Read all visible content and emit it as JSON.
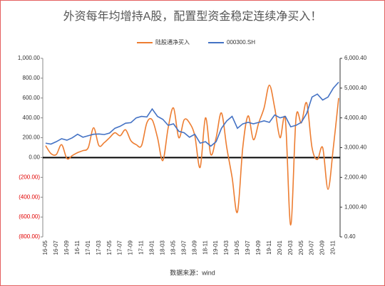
{
  "chart_data": {
    "type": "line",
    "title": "外资每年均增持A股，配置型资金稳定连续净买入！",
    "source": "数据来源：wind",
    "categories": [
      "16-05",
      null,
      "16-07",
      null,
      "16-09",
      null,
      "16-11",
      null,
      "17-01",
      null,
      "17-03",
      null,
      "17-05",
      null,
      "17-07",
      null,
      "17-09",
      null,
      "17-11",
      null,
      "18-01",
      null,
      "18-03",
      null,
      "18-05",
      null,
      "18-07",
      null,
      "18-09",
      null,
      "18-11",
      null,
      "19-01",
      null,
      "19-03",
      null,
      "19-05",
      null,
      "19-07",
      null,
      "19-09",
      null,
      "19-11",
      null,
      "20-01",
      null,
      "20-03",
      null,
      "20-05",
      null,
      "20-07",
      null,
      "20-09",
      null,
      "20-11",
      null
    ],
    "series": [
      {
        "name": "陆股通净买入",
        "color": "#ed7d31",
        "values": [
          120,
          40,
          30,
          130,
          -10,
          20,
          50,
          70,
          100,
          300,
          120,
          150,
          200,
          250,
          220,
          280,
          170,
          130,
          120,
          350,
          380,
          200,
          -30,
          300,
          500,
          200,
          380,
          350,
          220,
          -100,
          400,
          30,
          200,
          450,
          100,
          -200,
          -550,
          100,
          420,
          180,
          350,
          500,
          730,
          500,
          200,
          380,
          -680,
          400,
          350,
          550,
          100,
          -20,
          100,
          -320,
          100,
          600
        ]
      },
      {
        "name": "000300.SH",
        "color": "#4472c4",
        "axis": "y2",
        "values": [
          3150,
          3120,
          3200,
          3300,
          3250,
          3330,
          3450,
          3350,
          3400,
          3450,
          3460,
          3440,
          3490,
          3650,
          3720,
          3820,
          3840,
          4000,
          4050,
          4030,
          4300,
          4050,
          3950,
          3750,
          3800,
          3550,
          3500,
          3350,
          3450,
          3150,
          3200,
          3050,
          3200,
          3650,
          3900,
          4050,
          3650,
          3800,
          3850,
          3800,
          3850,
          3900,
          3850,
          4100,
          4000,
          4050,
          3700,
          3750,
          3850,
          4150,
          4700,
          4800,
          4600,
          4700,
          5000,
          5200
        ]
      }
    ],
    "ylim": [
      -800,
      1000
    ],
    "yticks": [
      {
        "value": 1000,
        "label": "1,000.00"
      },
      {
        "value": 800,
        "label": "800.00"
      },
      {
        "value": 600,
        "label": "600.00"
      },
      {
        "value": 400,
        "label": "400.00"
      },
      {
        "value": 200,
        "label": "200.00"
      },
      {
        "value": 0,
        "label": "0.00"
      },
      {
        "value": -200,
        "label": "(200.00)"
      },
      {
        "value": -400,
        "label": "(400.00)"
      },
      {
        "value": -600,
        "label": "(600.00)"
      },
      {
        "value": -800,
        "label": "(800.00)"
      }
    ],
    "negative_tick_color": "#e00000",
    "y2lim": [
      0.4,
      6000.4
    ],
    "y2ticks": [
      {
        "value": 6000.4,
        "label": "6,000.40"
      },
      {
        "value": 5000.4,
        "label": "5,000.40"
      },
      {
        "value": 4000.4,
        "label": "4,000.40"
      },
      {
        "value": 3000.4,
        "label": "3,000.40"
      },
      {
        "value": 2000.4,
        "label": "2,000.40"
      },
      {
        "value": 1000.4,
        "label": "1,000.40"
      },
      {
        "value": 0.4,
        "label": "0.40"
      }
    ]
  }
}
